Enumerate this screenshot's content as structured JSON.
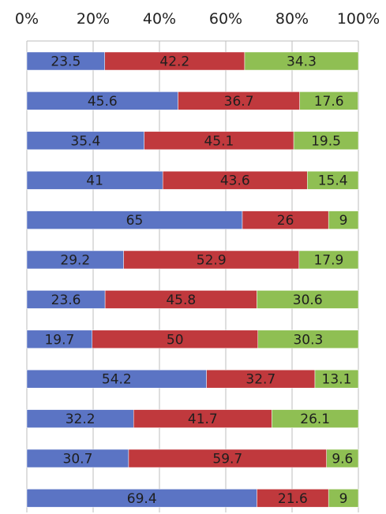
{
  "chart_data": {
    "type": "bar",
    "orientation": "horizontal",
    "stacked": "percent",
    "xlim": [
      0,
      100
    ],
    "x_ticks": [
      "0%",
      "20%",
      "40%",
      "60%",
      "80%",
      "100%"
    ],
    "x_axis_position": "top",
    "grid": true,
    "legend": "none",
    "colors": [
      "#5b74c4",
      "#c0393d",
      "#8fbf53"
    ],
    "series": [
      {
        "values": [
          23.5,
          45.6,
          35.4,
          41,
          65,
          29.2,
          23.6,
          19.7,
          54.2,
          32.2,
          30.7,
          69.4
        ]
      },
      {
        "values": [
          42.2,
          36.7,
          45.1,
          43.6,
          26,
          52.9,
          45.8,
          50,
          32.7,
          41.7,
          59.7,
          21.6
        ]
      },
      {
        "values": [
          34.3,
          17.6,
          19.5,
          15.4,
          9,
          17.9,
          30.6,
          30.3,
          13.1,
          26.1,
          9.6,
          9
        ]
      }
    ]
  }
}
